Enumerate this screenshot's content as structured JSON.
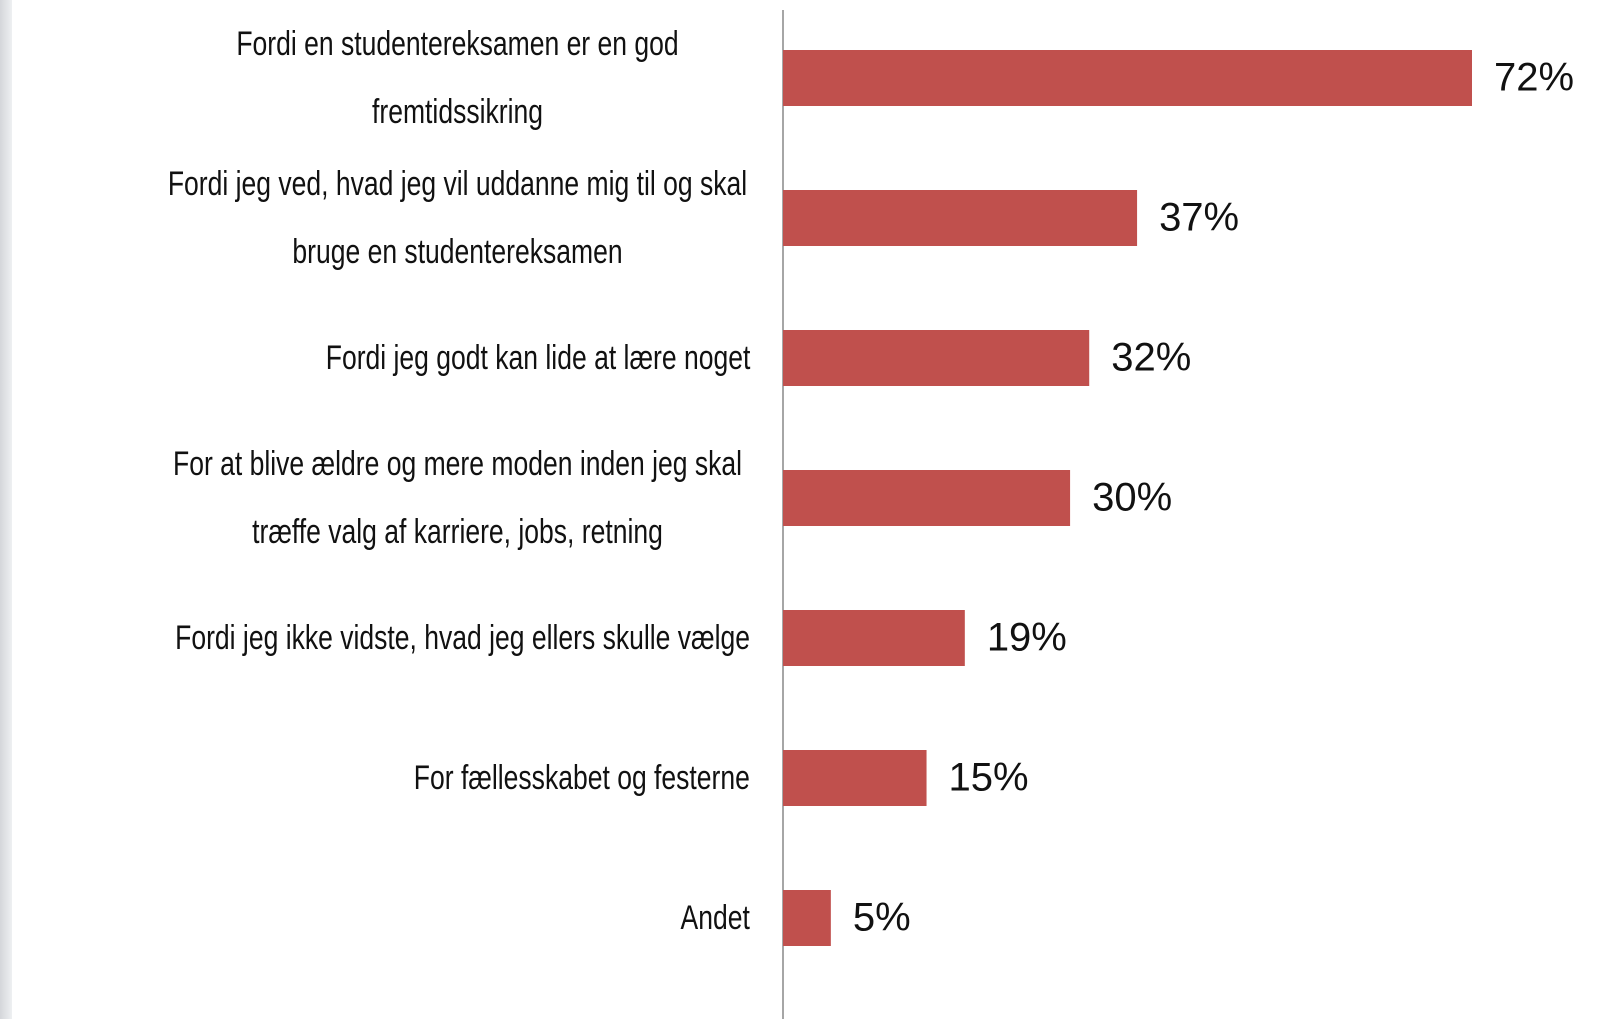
{
  "chart_data": {
    "type": "bar",
    "orientation": "horizontal",
    "categories": [
      "Fordi en studentereksamen er en god fremtidssikring",
      "Fordi jeg ved, hvad jeg vil uddanne mig til og skal bruge en studentereksamen",
      "Fordi jeg godt kan lide at lære noget",
      "For at blive ældre og mere moden inden jeg skal træffe valg af karriere, jobs, retning",
      "Fordi jeg ikke vidste, hvad jeg ellers skulle vælge",
      "For fællesskabet og festerne",
      "Andet"
    ],
    "values": [
      72,
      37,
      32,
      30,
      19,
      15,
      5
    ],
    "value_labels": [
      "72%",
      "37%",
      "32%",
      "30%",
      "19%",
      "15%",
      "5%"
    ],
    "color": "#c0504d"
  }
}
